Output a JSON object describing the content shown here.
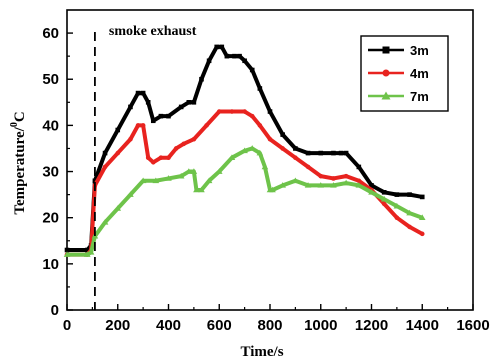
{
  "chart_data": {
    "type": "line",
    "xlabel": "Time/s",
    "ylabel": "Temperature/",
    "ylabel_unit_sup": "0",
    "ylabel_unit": "C",
    "xlim": [
      0,
      1600
    ],
    "ylim": [
      0,
      65
    ],
    "xticks": [
      0,
      200,
      400,
      600,
      800,
      1000,
      1200,
      1400,
      1600
    ],
    "yticks": [
      0,
      10,
      20,
      30,
      40,
      50,
      60
    ],
    "annotation": {
      "text": "smoke exhaust",
      "x": 110
    },
    "legend_position": "top-right",
    "series": [
      {
        "name": "3m",
        "color": "#000000",
        "marker": "square",
        "x": [
          0,
          80,
          95,
          110,
          150,
          200,
          250,
          280,
          300,
          320,
          340,
          370,
          400,
          450,
          480,
          500,
          530,
          560,
          590,
          610,
          630,
          660,
          680,
          700,
          730,
          760,
          800,
          850,
          900,
          950,
          1000,
          1050,
          1080,
          1100,
          1150,
          1200,
          1250,
          1300,
          1350,
          1400
        ],
        "y": [
          13,
          13,
          14,
          28,
          34,
          39,
          44,
          47,
          47,
          45,
          41,
          42,
          42,
          44,
          45,
          45,
          50,
          54,
          57,
          57,
          55,
          55,
          55,
          54,
          52,
          48,
          43,
          38,
          35,
          34,
          34,
          34,
          34,
          34,
          31,
          27,
          25.5,
          25,
          25,
          24.5
        ]
      },
      {
        "name": "4m",
        "color": "#e8231f",
        "marker": "circle",
        "x": [
          0,
          80,
          95,
          110,
          150,
          200,
          250,
          280,
          300,
          320,
          340,
          370,
          400,
          430,
          460,
          500,
          550,
          600,
          650,
          700,
          730,
          760,
          800,
          850,
          900,
          950,
          1000,
          1050,
          1100,
          1150,
          1200,
          1250,
          1300,
          1350,
          1400
        ],
        "y": [
          12,
          12,
          13,
          27,
          31,
          34,
          37,
          40,
          40,
          33,
          32,
          33,
          33,
          35,
          36,
          37,
          40,
          43,
          43,
          43,
          42,
          40,
          37,
          35,
          33,
          31,
          29,
          28.5,
          29,
          28,
          26,
          23,
          20,
          18,
          16.5
        ]
      },
      {
        "name": "7m",
        "color": "#6ec34a",
        "marker": "triangle",
        "x": [
          0,
          80,
          95,
          110,
          150,
          200,
          250,
          300,
          350,
          400,
          450,
          480,
          500,
          510,
          530,
          560,
          600,
          650,
          700,
          730,
          760,
          780,
          800,
          810,
          850,
          900,
          950,
          1000,
          1050,
          1100,
          1150,
          1200,
          1250,
          1300,
          1350,
          1400
        ],
        "y": [
          12,
          12,
          12.5,
          16,
          19,
          22,
          25,
          28,
          28,
          28.5,
          29,
          30,
          30,
          26,
          26,
          28,
          30,
          33,
          34.5,
          35,
          34,
          31,
          26,
          26,
          27,
          28,
          27,
          27,
          27,
          27.5,
          27,
          25.5,
          24,
          22.5,
          21,
          20
        ]
      }
    ]
  }
}
